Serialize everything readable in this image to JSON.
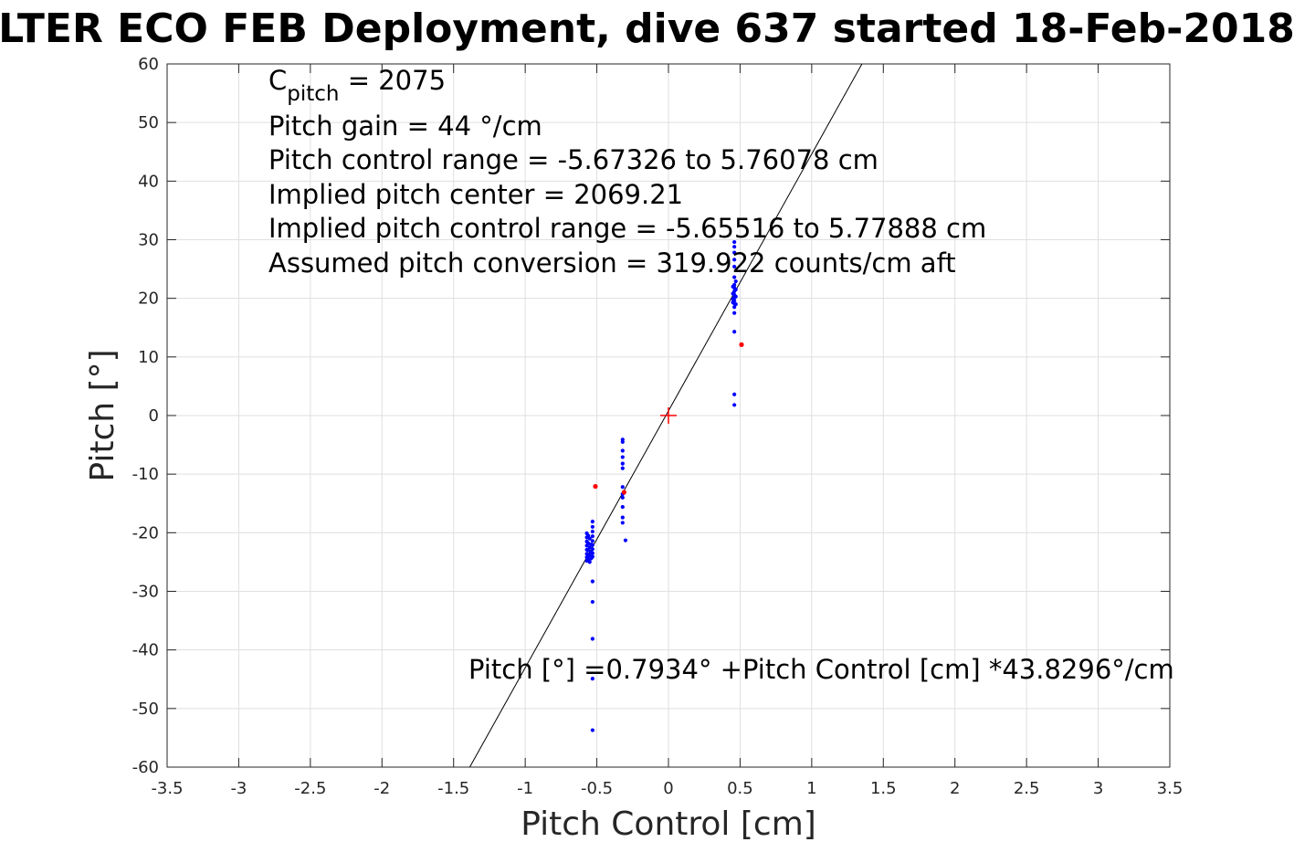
{
  "chart_data": {
    "type": "scatter",
    "title": "LTER ECO FEB Deployment, dive 637 started 18-Feb-2018",
    "xlabel": "Pitch Control [cm]",
    "ylabel": "Pitch [°]",
    "xlim": [
      -3.5,
      3.5
    ],
    "ylim": [
      -60,
      60
    ],
    "grid": true,
    "x_ticks": [
      -3.5,
      -3,
      -2.5,
      -2,
      -1.5,
      -1,
      -0.5,
      0,
      0.5,
      1,
      1.5,
      2,
      2.5,
      3,
      3.5
    ],
    "y_ticks": [
      -60,
      -50,
      -40,
      -30,
      -20,
      -10,
      0,
      10,
      20,
      30,
      40,
      50,
      60
    ],
    "x_tick_labels": [
      "-3.5",
      "-3",
      "-2.5",
      "-2",
      "-1.5",
      "-1",
      "-0.5",
      "0",
      "0.5",
      "1",
      "1.5",
      "2",
      "2.5",
      "3",
      "3.5"
    ],
    "y_tick_labels": [
      "-60",
      "-50",
      "-40",
      "-30",
      "-20",
      "-10",
      "0",
      "10",
      "20",
      "30",
      "40",
      "50",
      "60"
    ],
    "annotations": {
      "c_pitch_symbol": "C",
      "c_pitch_subscript": "pitch",
      "c_pitch_value": " = 2075",
      "pitch_gain": "Pitch gain = 44 °/cm",
      "control_range": "Pitch control range = -5.67326 to 5.76078 cm",
      "implied_center": "Implied pitch center = 2069.21",
      "implied_range": "Implied pitch control range = -5.65516 to 5.77888 cm",
      "conversion": "Assumed pitch conversion = 319.922 counts/cm aft",
      "fit_equation": "Pitch [°] =0.7934° +Pitch Control [cm] *43.8296°/cm"
    },
    "fit_line": {
      "intercept": 0.7934,
      "slope": 43.8296,
      "color": "#000000"
    },
    "center_marker": {
      "x": 0,
      "y": 0,
      "color": "#ff0000",
      "marker": "plus"
    },
    "series": [
      {
        "color": "#0000ff",
        "points": [
          [
            -0.57,
            -20.1
          ],
          [
            -0.57,
            -20.8
          ],
          [
            -0.57,
            -21.5
          ],
          [
            -0.57,
            -22.2
          ],
          [
            -0.57,
            -22.9
          ],
          [
            -0.57,
            -23.6
          ],
          [
            -0.57,
            -24.2
          ],
          [
            -0.57,
            -24.8
          ],
          [
            -0.56,
            -20.5
          ],
          [
            -0.56,
            -21.8
          ],
          [
            -0.56,
            -23.0
          ],
          [
            -0.56,
            -24.0
          ],
          [
            -0.56,
            -24.6
          ],
          [
            -0.55,
            -21.0
          ],
          [
            -0.55,
            -22.5
          ],
          [
            -0.55,
            -23.8
          ],
          [
            -0.55,
            -25.0
          ],
          [
            -0.54,
            -22.0
          ],
          [
            -0.54,
            -23.3
          ],
          [
            -0.54,
            -24.4
          ],
          [
            -0.53,
            -19.8
          ],
          [
            -0.53,
            -20.6
          ],
          [
            -0.53,
            -21.4
          ],
          [
            -0.53,
            -22.1
          ],
          [
            -0.53,
            -22.8
          ],
          [
            -0.53,
            -23.5
          ],
          [
            -0.53,
            -24.1
          ],
          [
            -0.53,
            -18.1
          ],
          [
            -0.53,
            -19.0
          ],
          [
            -0.53,
            -28.3
          ],
          [
            -0.53,
            -31.8
          ],
          [
            -0.53,
            -38.1
          ],
          [
            -0.53,
            -44.9
          ],
          [
            -0.53,
            -53.7
          ],
          [
            -0.32,
            -4.1
          ],
          [
            -0.32,
            -4.5
          ],
          [
            -0.32,
            -6.0
          ],
          [
            -0.32,
            -7.1
          ],
          [
            -0.32,
            -8.2
          ],
          [
            -0.32,
            -9.0
          ],
          [
            -0.32,
            -12.2
          ],
          [
            -0.32,
            -13.4
          ],
          [
            -0.32,
            -14.0
          ],
          [
            -0.32,
            -15.6
          ],
          [
            -0.32,
            -17.4
          ],
          [
            -0.32,
            -18.3
          ],
          [
            -0.3,
            -21.3
          ],
          [
            0.46,
            29.6
          ],
          [
            0.46,
            28.8
          ],
          [
            0.46,
            27.8
          ],
          [
            0.46,
            26.6
          ],
          [
            0.46,
            25.4
          ],
          [
            0.46,
            23.6
          ],
          [
            0.46,
            22.3
          ],
          [
            0.46,
            21.8
          ],
          [
            0.46,
            21.2
          ],
          [
            0.46,
            20.6
          ],
          [
            0.46,
            20.1
          ],
          [
            0.46,
            19.6
          ],
          [
            0.46,
            19.1
          ],
          [
            0.46,
            18.5
          ],
          [
            0.46,
            17.5
          ],
          [
            0.46,
            14.3
          ],
          [
            0.46,
            3.6
          ],
          [
            0.46,
            1.8
          ],
          [
            0.45,
            22.0
          ],
          [
            0.45,
            20.8
          ],
          [
            0.45,
            19.9
          ],
          [
            0.45,
            19.3
          ],
          [
            0.47,
            21.5
          ],
          [
            0.47,
            20.3
          ],
          [
            0.47,
            19.0
          ],
          [
            0.47,
            22.9
          ]
        ]
      },
      {
        "color": "#ff0000",
        "points": [
          [
            -0.51,
            -12.1
          ],
          [
            -0.31,
            -13.1
          ],
          [
            0.51,
            12.1
          ]
        ]
      }
    ]
  }
}
